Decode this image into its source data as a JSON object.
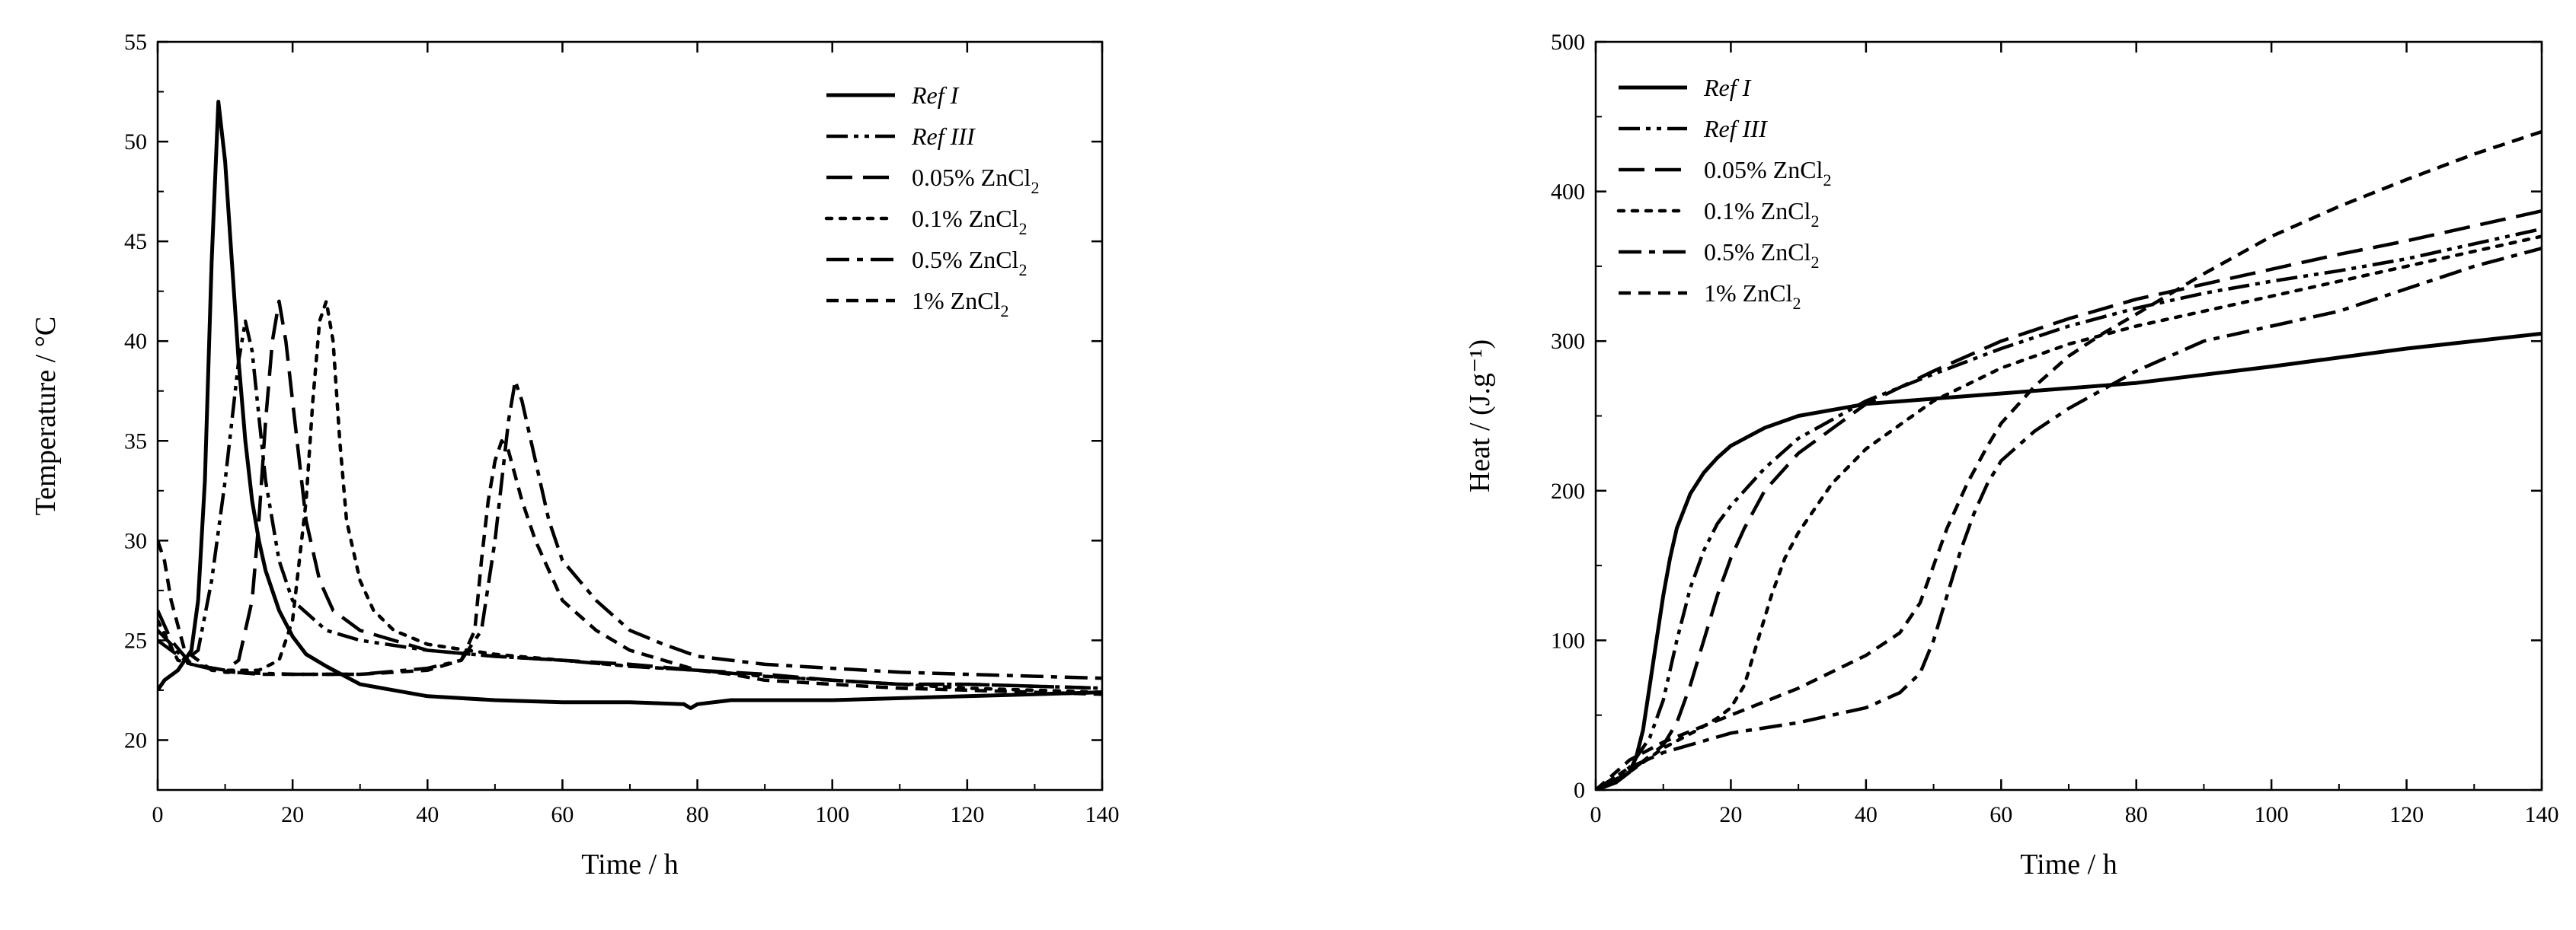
{
  "chart_data": [
    {
      "type": "line",
      "xlabel": "Time / h",
      "ylabel": "Temperature / °C",
      "xlim": [
        0,
        140
      ],
      "ylim": [
        17.5,
        55
      ],
      "xticks": [
        0,
        20,
        40,
        60,
        80,
        100,
        120,
        140
      ],
      "yticks": [
        20,
        25,
        30,
        35,
        40,
        45,
        50,
        55
      ],
      "legend_position": "top-right",
      "series": [
        {
          "name": "Ref I",
          "italic": true,
          "dash": "solid",
          "x": [
            0,
            1,
            3,
            5,
            6,
            7,
            8,
            9,
            10,
            11,
            12,
            13,
            14,
            15,
            16,
            18,
            20,
            22,
            25,
            30,
            40,
            50,
            60,
            70,
            78,
            79,
            80,
            85,
            90,
            100,
            110,
            120,
            130,
            140
          ],
          "y": [
            22.5,
            23,
            23.5,
            24.5,
            27,
            33,
            44,
            52,
            49,
            44,
            39,
            35,
            32,
            30,
            28.5,
            26.5,
            25.2,
            24.3,
            23.7,
            22.8,
            22.2,
            22.0,
            21.9,
            21.9,
            21.8,
            21.6,
            21.8,
            22.0,
            22.0,
            22.0,
            22.1,
            22.2,
            22.3,
            22.4
          ]
        },
        {
          "name": "Ref III",
          "italic": true,
          "dash": "dashdotdot",
          "x": [
            0,
            2,
            4,
            6,
            8,
            10,
            12,
            13,
            14,
            16,
            18,
            20,
            25,
            30,
            40,
            50,
            60,
            70,
            80,
            90,
            100,
            110,
            120,
            130,
            140
          ],
          "y": [
            25.5,
            24.8,
            24,
            24.5,
            28,
            33,
            39,
            41,
            39.5,
            33,
            29,
            27,
            25.5,
            25,
            24.5,
            24.2,
            24.0,
            23.7,
            23.5,
            23.2,
            23.0,
            22.8,
            22.8,
            22.7,
            22.6
          ]
        },
        {
          "name": "0.05% ZnCl2",
          "dash": "longdash",
          "x": [
            0,
            2,
            5,
            10,
            12,
            14,
            15,
            16,
            17,
            18,
            19,
            20,
            22,
            24,
            26,
            30,
            40,
            50,
            60,
            70,
            80,
            90,
            100,
            110,
            120,
            130,
            140
          ],
          "y": [
            26.5,
            25,
            23.8,
            23.5,
            24,
            27,
            31,
            36,
            40,
            42,
            40,
            37,
            31,
            28,
            26.5,
            25.5,
            24.5,
            24.2,
            24.0,
            23.8,
            23.5,
            23.3,
            23.0,
            22.8,
            22.8,
            22.7,
            22.6
          ]
        },
        {
          "name": "0.1% ZnCl2",
          "dash": "dotted",
          "x": [
            0,
            3,
            5,
            10,
            15,
            18,
            20,
            22,
            23,
            24,
            25,
            26,
            27,
            28,
            30,
            32,
            35,
            40,
            50,
            60,
            70,
            80,
            90,
            100,
            110,
            120,
            130,
            140
          ],
          "y": [
            26,
            24,
            23.8,
            23.5,
            23.5,
            24,
            26,
            32,
            37,
            41,
            42,
            40,
            35,
            31,
            28,
            26.5,
            25.5,
            24.8,
            24.3,
            24.0,
            23.7,
            23.5,
            23.2,
            23.0,
            22.8,
            22.6,
            22.5,
            22.4
          ]
        },
        {
          "name": "0.5% ZnCl2",
          "dash": "dashdot",
          "x": [
            0,
            2,
            5,
            10,
            20,
            30,
            40,
            45,
            48,
            50,
            52,
            53,
            54,
            56,
            58,
            60,
            65,
            70,
            75,
            80,
            85,
            90,
            100,
            110,
            120,
            130,
            140
          ],
          "y": [
            25,
            24.5,
            23.8,
            23.4,
            23.3,
            23.3,
            23.6,
            24,
            25.5,
            30,
            36,
            38,
            37,
            34,
            31,
            29,
            27,
            25.5,
            24.8,
            24.2,
            24.0,
            23.8,
            23.6,
            23.4,
            23.3,
            23.2,
            23.1
          ]
        },
        {
          "name": "1% ZnCl2",
          "dash": "dashed",
          "x": [
            0,
            1,
            2,
            4,
            8,
            15,
            30,
            40,
            45,
            47,
            48,
            49,
            50,
            51,
            52,
            54,
            56,
            58,
            60,
            65,
            70,
            75,
            80,
            85,
            90,
            100,
            110,
            120,
            130,
            140
          ],
          "y": [
            30,
            29,
            27,
            24.5,
            23.5,
            23.3,
            23.3,
            23.5,
            24,
            25.5,
            29,
            32,
            34,
            35,
            34.5,
            32,
            30,
            28.5,
            27,
            25.5,
            24.5,
            24.0,
            23.5,
            23.3,
            23.0,
            22.8,
            22.6,
            22.5,
            22.4,
            22.3
          ]
        }
      ]
    },
    {
      "type": "line",
      "xlabel": "Time / h",
      "ylabel": "Heat / (J.g⁻¹)",
      "xlim": [
        0,
        140
      ],
      "ylim": [
        0,
        500
      ],
      "xticks": [
        0,
        20,
        40,
        60,
        80,
        100,
        120,
        140
      ],
      "yticks": [
        0,
        100,
        200,
        300,
        400,
        500
      ],
      "legend_position": "top-left",
      "series": [
        {
          "name": "Ref I",
          "italic": true,
          "dash": "solid",
          "x": [
            0,
            3,
            5,
            6,
            7,
            8,
            9,
            10,
            11,
            12,
            14,
            16,
            18,
            20,
            25,
            30,
            40,
            60,
            80,
            100,
            120,
            140
          ],
          "y": [
            0,
            5,
            12,
            22,
            40,
            70,
            100,
            130,
            155,
            175,
            198,
            212,
            222,
            230,
            242,
            250,
            258,
            265,
            272,
            283,
            295,
            305
          ]
        },
        {
          "name": "Ref III",
          "italic": true,
          "dash": "dashdotdot",
          "x": [
            0,
            5,
            8,
            10,
            12,
            14,
            16,
            18,
            20,
            25,
            30,
            40,
            50,
            60,
            70,
            80,
            90,
            100,
            110,
            120,
            130,
            140
          ],
          "y": [
            0,
            15,
            35,
            60,
            100,
            135,
            160,
            178,
            190,
            215,
            235,
            260,
            278,
            295,
            310,
            322,
            332,
            340,
            347,
            355,
            365,
            375
          ]
        },
        {
          "name": "0.05% ZnCl2",
          "dash": "longdash",
          "x": [
            0,
            5,
            10,
            12,
            14,
            16,
            18,
            20,
            22,
            25,
            30,
            40,
            50,
            60,
            70,
            80,
            90,
            100,
            110,
            120,
            130,
            140
          ],
          "y": [
            0,
            12,
            30,
            45,
            70,
            100,
            130,
            155,
            175,
            200,
            225,
            258,
            280,
            300,
            315,
            328,
            338,
            348,
            358,
            367,
            377,
            387
          ]
        },
        {
          "name": "0.1% ZnCl2",
          "dash": "dotted",
          "x": [
            0,
            5,
            10,
            15,
            18,
            20,
            22,
            24,
            26,
            28,
            30,
            35,
            40,
            50,
            60,
            70,
            80,
            90,
            100,
            110,
            120,
            130,
            140
          ],
          "y": [
            0,
            12,
            28,
            40,
            48,
            55,
            70,
            100,
            130,
            155,
            172,
            205,
            228,
            260,
            282,
            298,
            310,
            320,
            330,
            340,
            350,
            360,
            370
          ]
        },
        {
          "name": "0.5% ZnCl2",
          "dash": "dashdot",
          "x": [
            0,
            5,
            10,
            20,
            30,
            40,
            45,
            48,
            50,
            52,
            54,
            56,
            58,
            60,
            65,
            70,
            80,
            90,
            100,
            110,
            120,
            130,
            140
          ],
          "y": [
            0,
            15,
            25,
            38,
            45,
            55,
            65,
            78,
            100,
            130,
            160,
            185,
            205,
            220,
            240,
            255,
            280,
            300,
            310,
            320,
            335,
            350,
            362
          ]
        },
        {
          "name": "1% ZnCl2",
          "dash": "dashed",
          "x": [
            0,
            5,
            10,
            20,
            30,
            40,
            45,
            48,
            50,
            52,
            55,
            58,
            60,
            65,
            70,
            75,
            80,
            90,
            100,
            110,
            120,
            130,
            140
          ],
          "y": [
            0,
            20,
            32,
            50,
            68,
            90,
            105,
            125,
            150,
            175,
            205,
            230,
            245,
            270,
            290,
            305,
            318,
            345,
            370,
            390,
            408,
            425,
            440
          ]
        }
      ]
    }
  ]
}
